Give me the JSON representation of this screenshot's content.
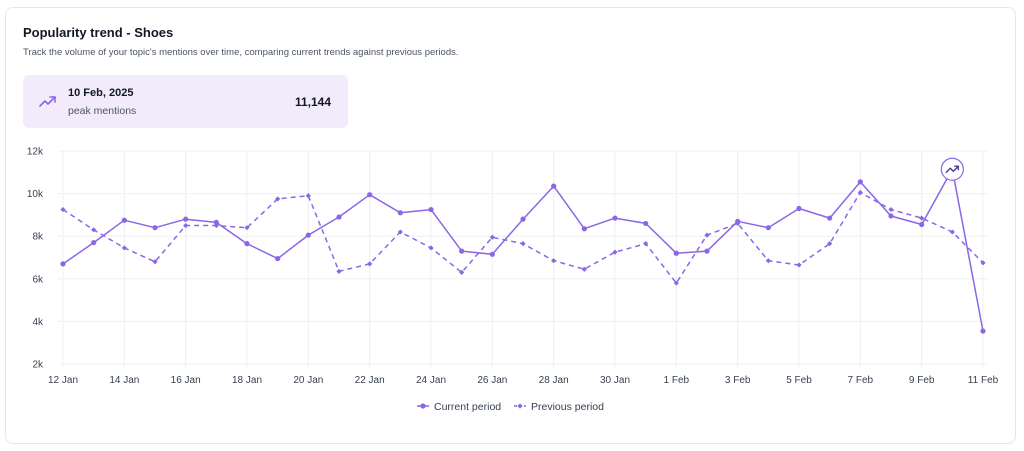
{
  "header": {
    "title": "Popularity trend - Shoes",
    "subtitle": "Track the volume of your topic's mentions over time, comparing current trends against previous periods."
  },
  "peak": {
    "date": "10 Feb, 2025",
    "label": "peak mentions",
    "value": "11,144",
    "icon": "trending-up-icon"
  },
  "colors": {
    "accent": "#8b67e6",
    "peak_bg": "#f1ebfc",
    "grid": "#eef0f3"
  },
  "chart_data": {
    "type": "line",
    "title": "",
    "xlabel": "",
    "ylabel": "",
    "ylim": [
      2000,
      12000
    ],
    "y_ticks": [
      "2k",
      "4k",
      "6k",
      "8k",
      "10k",
      "12k"
    ],
    "y_tick_values": [
      2000,
      4000,
      6000,
      8000,
      10000,
      12000
    ],
    "x_tick_labels": [
      "12 Jan",
      "14 Jan",
      "16 Jan",
      "18 Jan",
      "20 Jan",
      "22 Jan",
      "24 Jan",
      "26 Jan",
      "28 Jan",
      "30 Jan",
      "1 Feb",
      "3 Feb",
      "5 Feb",
      "7 Feb",
      "9 Feb",
      "11 Feb"
    ],
    "categories": [
      "12 Jan",
      "13 Jan",
      "14 Jan",
      "15 Jan",
      "16 Jan",
      "17 Jan",
      "18 Jan",
      "19 Jan",
      "20 Jan",
      "21 Jan",
      "22 Jan",
      "23 Jan",
      "24 Jan",
      "25 Jan",
      "26 Jan",
      "27 Jan",
      "28 Jan",
      "29 Jan",
      "30 Jan",
      "31 Jan",
      "1 Feb",
      "2 Feb",
      "3 Feb",
      "4 Feb",
      "5 Feb",
      "6 Feb",
      "7 Feb",
      "8 Feb",
      "9 Feb",
      "10 Feb",
      "11 Feb"
    ],
    "grid": true,
    "legend_position": "bottom",
    "series": [
      {
        "name": "Current period",
        "style": "solid",
        "values": [
          6700,
          7700,
          8750,
          8400,
          8800,
          8650,
          7650,
          6950,
          8050,
          8900,
          9950,
          9100,
          9250,
          7300,
          7150,
          8800,
          10350,
          8350,
          8850,
          8600,
          7200,
          7300,
          8700,
          8400,
          9300,
          8850,
          10550,
          8950,
          8550,
          11144,
          3550
        ]
      },
      {
        "name": "Previous period",
        "style": "dashed",
        "values": [
          9250,
          8300,
          7450,
          6800,
          8500,
          8500,
          8400,
          9750,
          9900,
          6350,
          6700,
          8200,
          7450,
          6300,
          7950,
          7650,
          6850,
          6450,
          7250,
          7650,
          5800,
          8050,
          8600,
          6850,
          6650,
          7650,
          10050,
          9250,
          8850,
          8200,
          6750
        ]
      }
    ]
  }
}
